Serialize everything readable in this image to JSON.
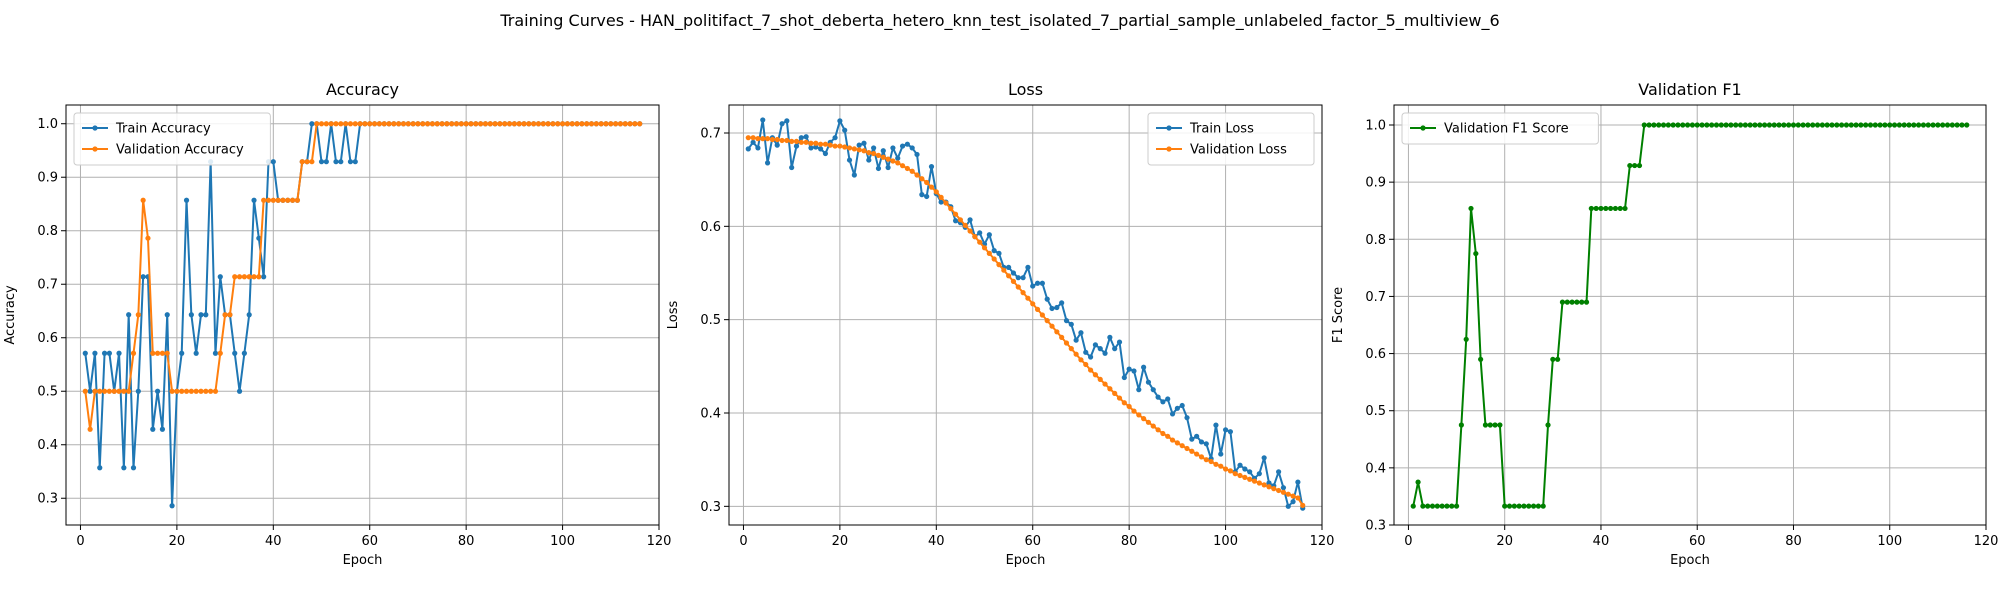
{
  "suptitle": "Training Curves - HAN_politifact_7_shot_deberta_hetero_knn_test_isolated_7_partial_sample_unlabeled_factor_5_multiview_6",
  "chart_data": [
    {
      "type": "line",
      "title": "Accuracy",
      "xlabel": "Epoch",
      "ylabel": "Accuracy",
      "xlim": [
        -3,
        120
      ],
      "ylim": [
        0.25,
        1.035
      ],
      "xticks": [
        0,
        20,
        40,
        60,
        80,
        100,
        120
      ],
      "yticks": [
        0.3,
        0.4,
        0.5,
        0.6,
        0.7,
        0.8,
        0.9,
        1.0
      ],
      "grid": true,
      "legend": "top-left",
      "series": [
        {
          "name": "Train Accuracy",
          "color": "#1f77b4",
          "x_start": 1,
          "values": [
            0.571,
            0.5,
            0.571,
            0.357,
            0.571,
            0.571,
            0.5,
            0.571,
            0.357,
            0.643,
            0.357,
            0.5,
            0.714,
            0.714,
            0.429,
            0.5,
            0.429,
            0.643,
            0.286,
            0.5,
            0.571,
            0.857,
            0.643,
            0.571,
            0.643,
            0.643,
            0.929,
            0.571,
            0.714,
            0.643,
            0.643,
            0.571,
            0.5,
            0.571,
            0.643,
            0.857,
            0.786,
            0.714,
            0.929,
            0.929,
            0.857,
            0.857,
            0.857,
            0.857,
            0.857,
            0.929,
            0.929,
            1.0,
            1.0,
            0.929,
            0.929,
            1.0,
            0.929,
            0.929,
            1.0,
            0.929,
            0.929,
            1.0,
            1.0,
            1.0,
            1.0,
            1.0,
            1.0,
            1.0,
            1.0,
            1.0,
            1.0,
            1.0,
            1.0,
            1.0,
            1.0,
            1.0,
            1.0,
            1.0,
            1.0,
            1.0,
            1.0,
            1.0,
            1.0,
            1.0,
            1.0,
            1.0,
            1.0,
            1.0,
            1.0,
            1.0,
            1.0,
            1.0,
            1.0,
            1.0,
            1.0,
            1.0,
            1.0,
            1.0,
            1.0,
            1.0,
            1.0,
            1.0,
            1.0,
            1.0,
            1.0,
            1.0,
            1.0,
            1.0,
            1.0,
            1.0,
            1.0,
            1.0,
            1.0,
            1.0,
            1.0,
            1.0,
            1.0,
            1.0,
            1.0,
            1.0
          ]
        },
        {
          "name": "Validation Accuracy",
          "color": "#ff7f0e",
          "x_start": 1,
          "values": [
            0.5,
            0.429,
            0.5,
            0.5,
            0.5,
            0.5,
            0.5,
            0.5,
            0.5,
            0.5,
            0.571,
            0.643,
            0.857,
            0.786,
            0.571,
            0.571,
            0.571,
            0.571,
            0.5,
            0.5,
            0.5,
            0.5,
            0.5,
            0.5,
            0.5,
            0.5,
            0.5,
            0.5,
            0.571,
            0.643,
            0.643,
            0.714,
            0.714,
            0.714,
            0.714,
            0.714,
            0.714,
            0.857,
            0.857,
            0.857,
            0.857,
            0.857,
            0.857,
            0.857,
            0.857,
            0.929,
            0.929,
            0.929,
            1.0,
            1.0,
            1.0,
            1.0,
            1.0,
            1.0,
            1.0,
            1.0,
            1.0,
            1.0,
            1.0,
            1.0,
            1.0,
            1.0,
            1.0,
            1.0,
            1.0,
            1.0,
            1.0,
            1.0,
            1.0,
            1.0,
            1.0,
            1.0,
            1.0,
            1.0,
            1.0,
            1.0,
            1.0,
            1.0,
            1.0,
            1.0,
            1.0,
            1.0,
            1.0,
            1.0,
            1.0,
            1.0,
            1.0,
            1.0,
            1.0,
            1.0,
            1.0,
            1.0,
            1.0,
            1.0,
            1.0,
            1.0,
            1.0,
            1.0,
            1.0,
            1.0,
            1.0,
            1.0,
            1.0,
            1.0,
            1.0,
            1.0,
            1.0,
            1.0,
            1.0,
            1.0,
            1.0,
            1.0,
            1.0,
            1.0,
            1.0,
            1.0
          ]
        }
      ]
    },
    {
      "type": "line",
      "title": "Loss",
      "xlabel": "Epoch",
      "ylabel": "Loss",
      "xlim": [
        -3,
        120
      ],
      "ylim": [
        0.28,
        0.73
      ],
      "xticks": [
        0,
        20,
        40,
        60,
        80,
        100,
        120
      ],
      "yticks": [
        0.3,
        0.4,
        0.5,
        0.6,
        0.7
      ],
      "grid": true,
      "legend": "top-right",
      "series": [
        {
          "name": "Train Loss",
          "color": "#1f77b4",
          "x_start": 1,
          "values": [
            0.683,
            0.69,
            0.684,
            0.714,
            0.668,
            0.695,
            0.687,
            0.71,
            0.713,
            0.663,
            0.686,
            0.695,
            0.696,
            0.684,
            0.685,
            0.683,
            0.678,
            0.69,
            0.695,
            0.713,
            0.703,
            0.671,
            0.655,
            0.687,
            0.689,
            0.671,
            0.684,
            0.662,
            0.681,
            0.663,
            0.684,
            0.673,
            0.686,
            0.688,
            0.684,
            0.677,
            0.634,
            0.632,
            0.664,
            0.635,
            0.626,
            0.626,
            0.621,
            0.606,
            0.604,
            0.599,
            0.607,
            0.589,
            0.593,
            0.581,
            0.591,
            0.574,
            0.571,
            0.556,
            0.556,
            0.55,
            0.545,
            0.545,
            0.556,
            0.536,
            0.539,
            0.539,
            0.522,
            0.512,
            0.513,
            0.518,
            0.499,
            0.495,
            0.478,
            0.486,
            0.465,
            0.46,
            0.473,
            0.469,
            0.464,
            0.481,
            0.469,
            0.476,
            0.438,
            0.447,
            0.445,
            0.425,
            0.449,
            0.433,
            0.425,
            0.417,
            0.412,
            0.415,
            0.399,
            0.405,
            0.408,
            0.395,
            0.372,
            0.375,
            0.369,
            0.367,
            0.351,
            0.387,
            0.356,
            0.382,
            0.38,
            0.337,
            0.344,
            0.34,
            0.337,
            0.33,
            0.335,
            0.352,
            0.325,
            0.322,
            0.337,
            0.32,
            0.3,
            0.305,
            0.326,
            0.298
          ]
        },
        {
          "name": "Validation Loss",
          "color": "#ff7f0e",
          "x_start": 1,
          "values": [
            0.695,
            0.695,
            0.694,
            0.694,
            0.694,
            0.693,
            0.693,
            0.692,
            0.692,
            0.691,
            0.691,
            0.69,
            0.69,
            0.689,
            0.689,
            0.688,
            0.688,
            0.687,
            0.686,
            0.686,
            0.685,
            0.684,
            0.683,
            0.682,
            0.681,
            0.679,
            0.678,
            0.676,
            0.674,
            0.672,
            0.67,
            0.668,
            0.665,
            0.662,
            0.659,
            0.655,
            0.651,
            0.647,
            0.642,
            0.637,
            0.631,
            0.625,
            0.619,
            0.613,
            0.607,
            0.601,
            0.595,
            0.589,
            0.583,
            0.577,
            0.571,
            0.565,
            0.559,
            0.553,
            0.547,
            0.541,
            0.535,
            0.529,
            0.523,
            0.517,
            0.511,
            0.505,
            0.499,
            0.493,
            0.487,
            0.481,
            0.475,
            0.469,
            0.463,
            0.457,
            0.452,
            0.446,
            0.441,
            0.436,
            0.431,
            0.426,
            0.421,
            0.416,
            0.411,
            0.407,
            0.402,
            0.398,
            0.394,
            0.39,
            0.386,
            0.382,
            0.378,
            0.375,
            0.371,
            0.368,
            0.365,
            0.362,
            0.359,
            0.356,
            0.353,
            0.35,
            0.348,
            0.345,
            0.343,
            0.34,
            0.338,
            0.335,
            0.333,
            0.331,
            0.329,
            0.327,
            0.325,
            0.323,
            0.321,
            0.319,
            0.317,
            0.315,
            0.313,
            0.311,
            0.309,
            0.301
          ]
        }
      ]
    },
    {
      "type": "line",
      "title": "Validation F1",
      "xlabel": "Epoch",
      "ylabel": "F1 Score",
      "xlim": [
        -3,
        120
      ],
      "ylim": [
        0.3,
        1.035
      ],
      "xticks": [
        0,
        20,
        40,
        60,
        80,
        100,
        120
      ],
      "yticks": [
        0.3,
        0.4,
        0.5,
        0.6,
        0.7,
        0.8,
        0.9,
        1.0
      ],
      "grid": true,
      "legend": "top-left",
      "series": [
        {
          "name": "Validation F1 Score",
          "color": "#008000",
          "x_start": 1,
          "values": [
            0.333,
            0.375,
            0.333,
            0.333,
            0.333,
            0.333,
            0.333,
            0.333,
            0.333,
            0.333,
            0.475,
            0.625,
            0.854,
            0.775,
            0.59,
            0.475,
            0.475,
            0.475,
            0.475,
            0.333,
            0.333,
            0.333,
            0.333,
            0.333,
            0.333,
            0.333,
            0.333,
            0.333,
            0.475,
            0.59,
            0.59,
            0.69,
            0.69,
            0.69,
            0.69,
            0.69,
            0.69,
            0.854,
            0.854,
            0.854,
            0.854,
            0.854,
            0.854,
            0.854,
            0.854,
            0.929,
            0.929,
            0.929,
            1.0,
            1.0,
            1.0,
            1.0,
            1.0,
            1.0,
            1.0,
            1.0,
            1.0,
            1.0,
            1.0,
            1.0,
            1.0,
            1.0,
            1.0,
            1.0,
            1.0,
            1.0,
            1.0,
            1.0,
            1.0,
            1.0,
            1.0,
            1.0,
            1.0,
            1.0,
            1.0,
            1.0,
            1.0,
            1.0,
            1.0,
            1.0,
            1.0,
            1.0,
            1.0,
            1.0,
            1.0,
            1.0,
            1.0,
            1.0,
            1.0,
            1.0,
            1.0,
            1.0,
            1.0,
            1.0,
            1.0,
            1.0,
            1.0,
            1.0,
            1.0,
            1.0,
            1.0,
            1.0,
            1.0,
            1.0,
            1.0,
            1.0,
            1.0,
            1.0,
            1.0,
            1.0,
            1.0,
            1.0,
            1.0,
            1.0,
            1.0,
            1.0
          ]
        }
      ]
    }
  ]
}
